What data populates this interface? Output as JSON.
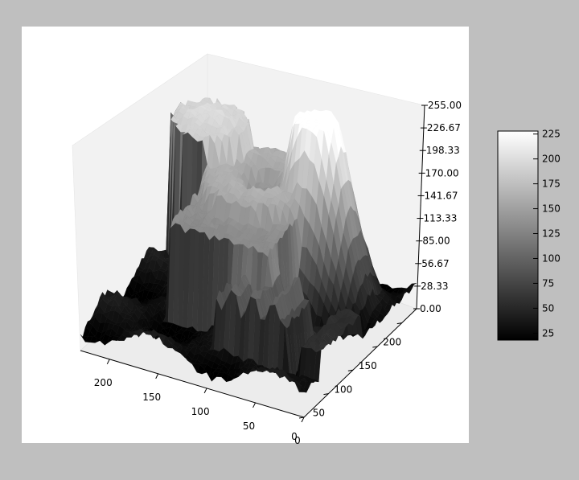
{
  "chart_data": {
    "type": "surface3d",
    "title": "",
    "colormap": "gray",
    "x_axis": {
      "label": "",
      "ticks": [
        "0",
        "50",
        "100",
        "150",
        "200"
      ],
      "range": [
        0,
        230
      ]
    },
    "y_axis": {
      "label": "",
      "ticks": [
        "0",
        "50",
        "100",
        "150",
        "200"
      ],
      "range": [
        0,
        230
      ]
    },
    "z_axis": {
      "label": "",
      "ticks": [
        "0.00",
        "28.33",
        "56.67",
        "85.00",
        "113.33",
        "141.67",
        "170.00",
        "198.33",
        "226.67",
        "255.00"
      ],
      "range": [
        0,
        255
      ]
    },
    "colorbar": {
      "ticks": [
        "225",
        "200",
        "175",
        "150",
        "125",
        "100",
        "75",
        "50",
        "25"
      ],
      "range": [
        18,
        228
      ]
    },
    "features": [
      {
        "description": "low dark floor region",
        "level": 30
      },
      {
        "description": "left cylindrical plateau",
        "level": 215
      },
      {
        "description": "central ring plateau",
        "level": 175
      },
      {
        "description": "right smooth peak",
        "level": 235
      },
      {
        "description": "front rectangular plateau",
        "level": 140
      }
    ],
    "grid": false,
    "background": "#bfbfbf",
    "plot_background": "#ffffff"
  }
}
